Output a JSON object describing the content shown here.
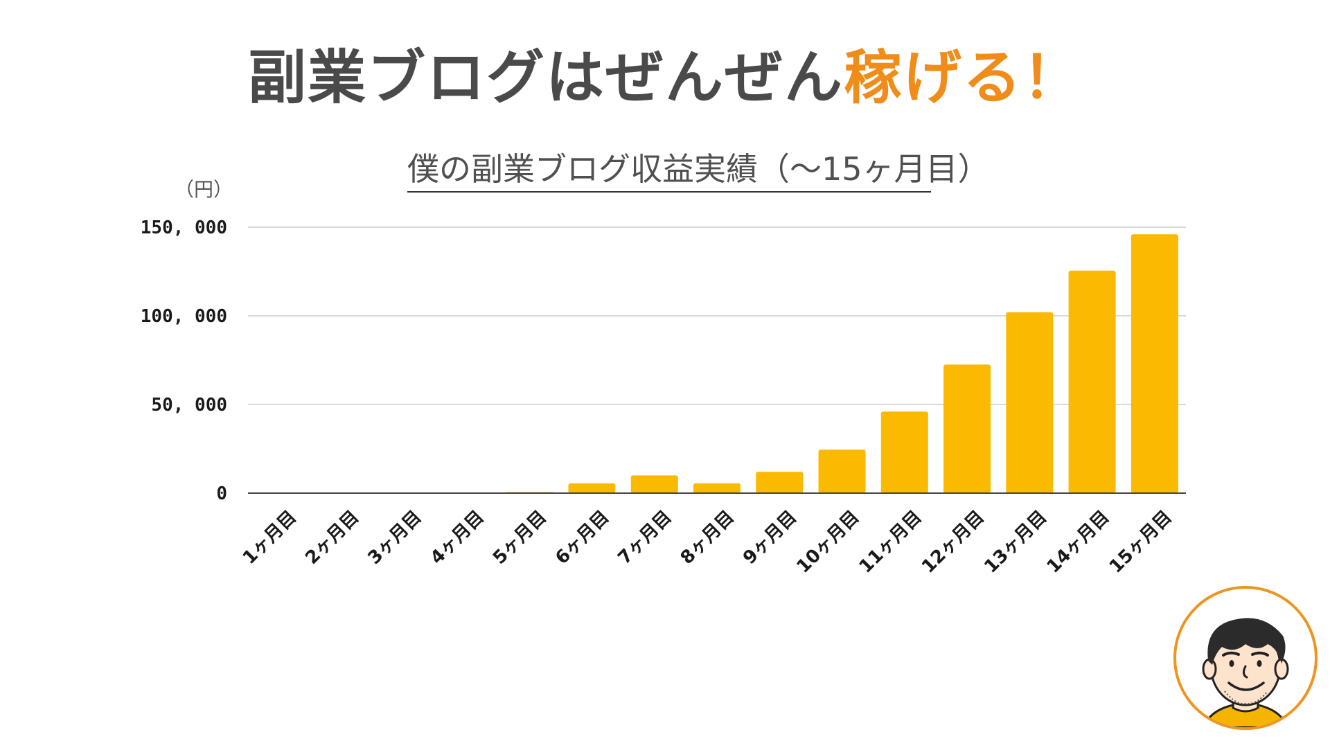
{
  "headline": {
    "main": "副業ブログはぜんぜん",
    "accent": "稼げる！"
  },
  "colors": {
    "headline_text": "#4a4a4a",
    "headline_accent": "#f08c1a",
    "bar": "#fbb900",
    "avatar_border": "#ee9420",
    "shirt": "#f5b400"
  },
  "avatar": {
    "icon": "smiling-man-face-icon"
  },
  "chart_data": {
    "type": "bar",
    "title": "僕の副業ブログ収益実績（〜15ヶ月目）",
    "ylabel": "（円）",
    "xlabel": "",
    "ylim": [
      0,
      150000
    ],
    "yticks": [
      0,
      50000,
      100000,
      150000
    ],
    "ytick_labels": [
      "0",
      "50, 000",
      "100, 000",
      "150, 000"
    ],
    "grid": true,
    "legend": "none",
    "categories": [
      "1ヶ月目",
      "2ヶ月目",
      "3ヶ月目",
      "4ヶ月目",
      "5ヶ月目",
      "6ヶ月目",
      "7ヶ月目",
      "8ヶ月目",
      "9ヶ月目",
      "10ヶ月目",
      "11ヶ月目",
      "12ヶ月目",
      "13ヶ月目",
      "14ヶ月目",
      "15ヶ月目"
    ],
    "values": [
      0,
      300,
      300,
      300,
      600,
      5500,
      10000,
      5500,
      12000,
      24500,
      46000,
      72500,
      102000,
      125500,
      146000
    ]
  }
}
